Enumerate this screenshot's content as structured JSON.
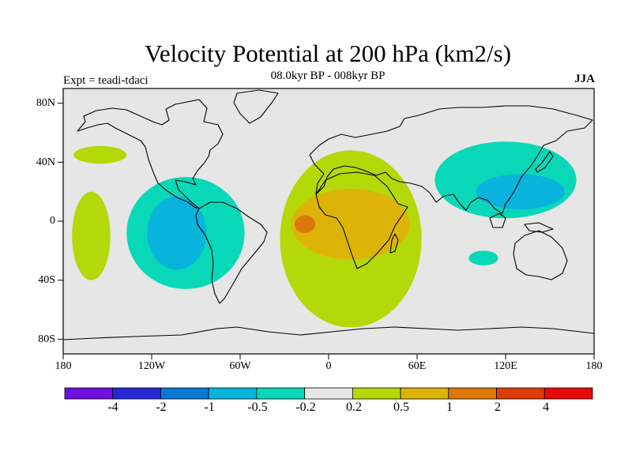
{
  "title": "Velocity Potential at 200 hPa (km2/s)",
  "subtitle": "08.0kyr BP - 008kyr BP",
  "experiment": "Expt = teadi-tdaci",
  "season": "JJA",
  "axes": {
    "lat_ticks": [
      "80N",
      "40N",
      "0",
      "40S",
      "80S"
    ],
    "lat_values": [
      80,
      40,
      0,
      -40,
      -80
    ],
    "lon_ticks": [
      "180",
      "120W",
      "60W",
      "0",
      "60E",
      "120E",
      "180"
    ],
    "lon_values": [
      -180,
      -120,
      -60,
      0,
      60,
      120,
      180
    ],
    "lat_range": [
      -90,
      90
    ],
    "lon_range": [
      -180,
      180
    ]
  },
  "colors": {
    "ocean_neutral": "#e6e6e6",
    "coast": "#000000",
    "frame": "#000000"
  },
  "colorbar": {
    "labels": [
      "-4",
      "-2",
      "-1",
      "-0.5",
      "-0.2",
      "0.2",
      "0.5",
      "1",
      "2",
      "4"
    ],
    "colors": [
      "#7010dc",
      "#2828d2",
      "#0a78d2",
      "#08b4dc",
      "#08d8b8",
      "#e6e6e6",
      "#b4d808",
      "#dcb408",
      "#dc7808",
      "#dc3c08",
      "#e60a0a"
    ]
  },
  "anomalies": [
    {
      "name": "central-pacific-negative-outer",
      "level": "-0.2",
      "lon": -97,
      "lat": -8,
      "rlon": 40,
      "rlat": 38
    },
    {
      "name": "central-pacific-negative-inner",
      "level": "-0.5",
      "lon": -103,
      "lat": -8,
      "rlon": 20,
      "rlat": 25
    },
    {
      "name": "atlantic-africa-positive-outer",
      "level": "0.2",
      "lon": 15,
      "lat": -12,
      "rlon": 48,
      "rlat": 60
    },
    {
      "name": "africa-positive-mid",
      "level": "0.5",
      "lon": 15,
      "lat": -2,
      "rlon": 40,
      "rlat": 24
    },
    {
      "name": "gulf-of-guinea-positive-core",
      "level": "1",
      "lon": -16,
      "lat": -2,
      "rlon": 7,
      "rlat": 6
    },
    {
      "name": "east-pacific-positive-strip",
      "level": "0.2",
      "lon": -161,
      "lat": -10,
      "rlon": 13,
      "rlat": 30
    },
    {
      "name": "north-pacific-positive",
      "level": "0.2",
      "lon": -155,
      "lat": 45,
      "rlon": 18,
      "rlat": 6
    },
    {
      "name": "east-asia-negative-outer",
      "level": "-0.2",
      "lon": 120,
      "lat": 28,
      "rlon": 48,
      "rlat": 26
    },
    {
      "name": "east-asia-negative-inner",
      "level": "-0.5",
      "lon": 130,
      "lat": 20,
      "rlon": 30,
      "rlat": 12
    },
    {
      "name": "south-indian-negative",
      "level": "-0.2",
      "lon": 105,
      "lat": -25,
      "rlon": 10,
      "rlat": 5
    }
  ]
}
